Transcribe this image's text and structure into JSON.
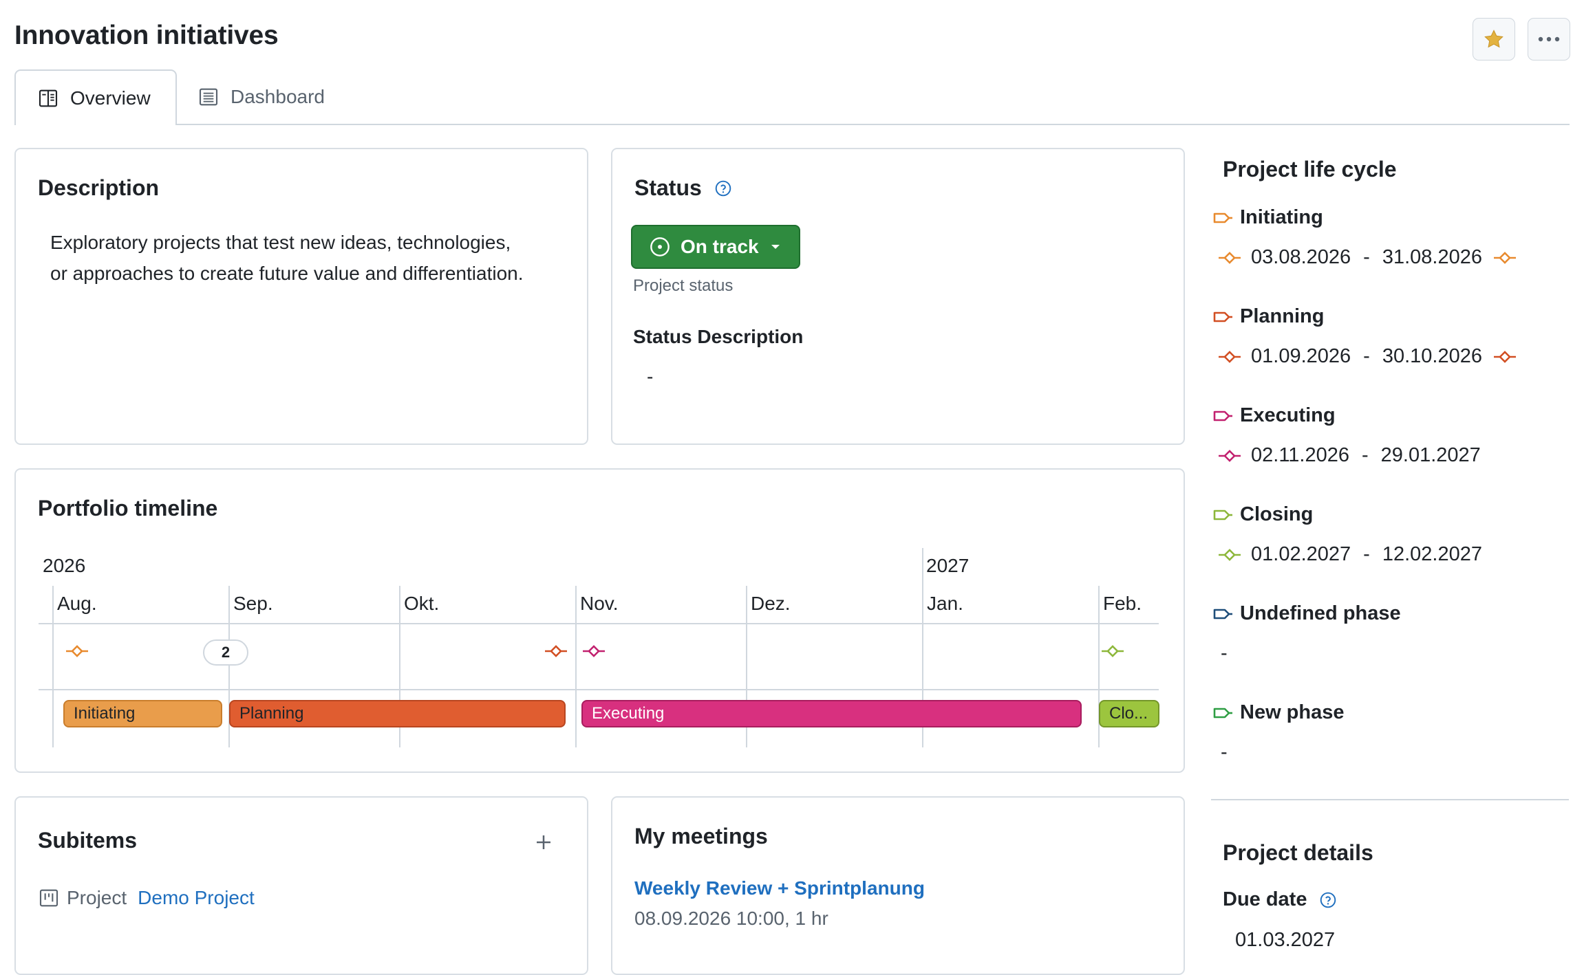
{
  "page": {
    "title": "Innovation initiatives",
    "tabs": [
      {
        "label": "Overview",
        "icon": "book-icon",
        "active": true
      },
      {
        "label": "Dashboard",
        "icon": "list-icon",
        "active": false
      }
    ],
    "favorite_icon": "star-icon",
    "more_icon": "kebab-icon"
  },
  "description": {
    "title": "Description",
    "text_line1": "Exploratory projects that test new ideas, technologies,",
    "text_line2": "or approaches to create future value and differentiation."
  },
  "status": {
    "title": "Status",
    "button_label": "On track",
    "button_color": "#2f8b3f",
    "caption": "Project status",
    "description_title": "Status Description",
    "description_value": "-"
  },
  "timeline": {
    "title": "Portfolio timeline",
    "years": [
      "2026",
      "2027"
    ],
    "months": [
      "Aug.",
      "Sep.",
      "Okt.",
      "Nov.",
      "Dez.",
      "Jan.",
      "Feb."
    ],
    "cluster_count": "2",
    "bars": [
      {
        "label": "Initiating",
        "color": "#e99d4b",
        "text_color": "#1f2328"
      },
      {
        "label": "Planning",
        "color": "#e05d30",
        "text_color": "#1f2328"
      },
      {
        "label": "Executing",
        "color": "#d8307f",
        "text_color": "#ffffff"
      },
      {
        "label": "Clo...",
        "color": "#9cc53e",
        "text_color": "#1f2328"
      }
    ]
  },
  "subitems": {
    "title": "Subitems",
    "add_icon": "plus-icon",
    "item_type": "Project",
    "item_link": "Demo Project"
  },
  "meetings": {
    "title": "My meetings",
    "meeting_title": "Weekly Review + Sprintplanung",
    "meeting_time": "08.09.2026 10:00, 1 hr"
  },
  "life_cycle": {
    "title": "Project life cycle",
    "phases": [
      {
        "name": "Initiating",
        "color": "#e88a2e",
        "start": "03.08.2026",
        "sep": "-",
        "end": "31.08.2026"
      },
      {
        "name": "Planning",
        "color": "#d24f23",
        "start": "01.09.2026",
        "sep": "-",
        "end": "30.10.2026"
      },
      {
        "name": "Executing",
        "color": "#c2216f",
        "start": "02.11.2026",
        "sep": "-",
        "end": "29.01.2027"
      },
      {
        "name": "Closing",
        "color": "#8db73a",
        "start": "01.02.2027",
        "sep": "-",
        "end": "12.02.2027"
      },
      {
        "name": "Undefined phase",
        "color": "#1f4e7a",
        "value": "-"
      },
      {
        "name": "New phase",
        "color": "#2f9e44",
        "value": "-"
      }
    ]
  },
  "details": {
    "title": "Project details",
    "due_date_label": "Due date",
    "due_date_value": "01.03.2027"
  }
}
